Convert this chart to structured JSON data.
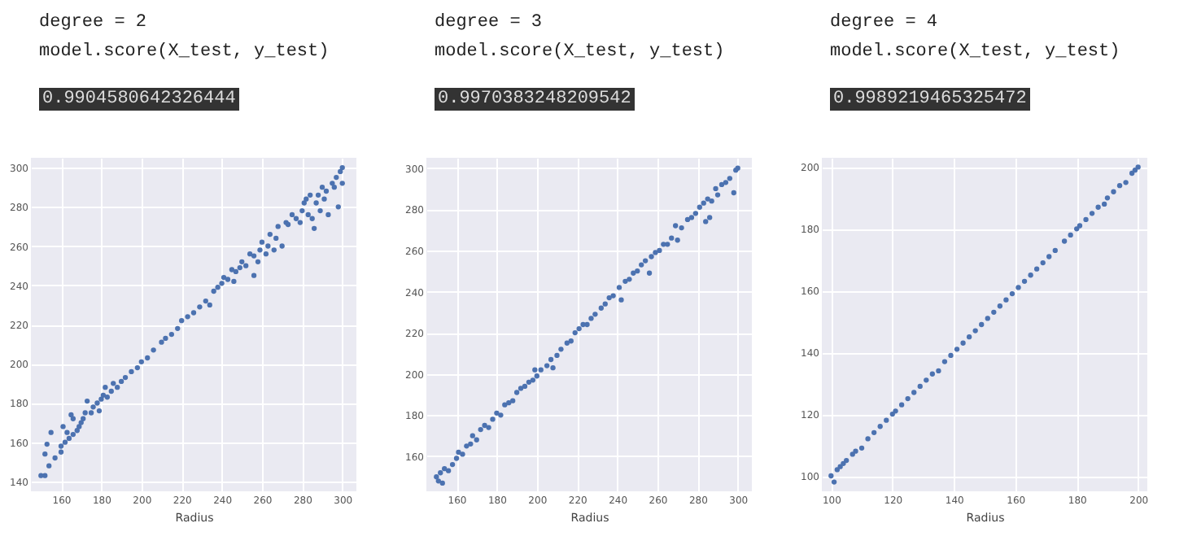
{
  "chart_data": [
    {
      "type": "scatter",
      "title": "degree = 2",
      "subtitle": "model.score(X_test, y_test)",
      "annotations": [
        "0.9904580642326444"
      ],
      "xlabel": "Radius",
      "grid": true,
      "marker": "circle",
      "xlim": [
        145,
        307
      ],
      "ylim": [
        135,
        305
      ],
      "xticks": [
        160,
        180,
        200,
        220,
        240,
        260,
        280,
        300
      ],
      "yticks": [
        140,
        160,
        180,
        200,
        220,
        240,
        260,
        280,
        300
      ],
      "series": [
        {
          "color": "#4c72b0",
          "x": [
            150,
            152,
            152,
            153,
            154,
            155,
            157,
            160,
            161,
            160,
            162,
            163,
            164,
            165,
            166,
            166,
            168,
            169,
            170,
            171,
            172,
            173,
            175,
            176,
            178,
            179,
            180,
            181,
            182,
            183,
            185,
            186,
            188,
            190,
            192,
            195,
            198,
            200,
            203,
            206,
            210,
            212,
            215,
            218,
            220,
            223,
            226,
            229,
            232,
            234,
            236,
            238,
            240,
            241,
            243,
            245,
            246,
            247,
            249,
            250,
            252,
            254,
            256,
            256,
            258,
            259,
            260,
            262,
            263,
            264,
            266,
            267,
            268,
            270,
            272,
            273,
            275,
            277,
            279,
            280,
            281,
            282,
            283,
            284,
            285,
            286,
            287,
            288,
            289,
            290,
            291,
            292,
            293,
            295,
            296,
            297,
            298,
            299,
            300,
            300
          ],
          "values": [
            143,
            143,
            154,
            159,
            148,
            165,
            152,
            155,
            168,
            158,
            160,
            165,
            162,
            174,
            172,
            164,
            166,
            168,
            170,
            172,
            175,
            181,
            175,
            178,
            180,
            176,
            182,
            184,
            188,
            183,
            186,
            190,
            188,
            191,
            193,
            196,
            198,
            201,
            203,
            207,
            211,
            213,
            215,
            218,
            222,
            224,
            226,
            229,
            232,
            230,
            237,
            239,
            241,
            244,
            243,
            248,
            242,
            247,
            249,
            252,
            250,
            256,
            245,
            255,
            252,
            258,
            262,
            256,
            260,
            266,
            258,
            264,
            270,
            260,
            272,
            271,
            276,
            274,
            272,
            278,
            282,
            284,
            276,
            286,
            274,
            269,
            282,
            286,
            278,
            290,
            284,
            288,
            276,
            292,
            290,
            295,
            280,
            298,
            300,
            292
          ]
        }
      ]
    },
    {
      "type": "scatter",
      "title": "degree = 3",
      "subtitle": "model.score(X_test, y_test)",
      "annotations": [
        "0.9970383248209542"
      ],
      "xlabel": "Radius",
      "grid": true,
      "marker": "circle",
      "xlim": [
        145,
        307
      ],
      "ylim": [
        143,
        305
      ],
      "xticks": [
        160,
        180,
        200,
        220,
        240,
        260,
        280,
        300
      ],
      "yticks": [
        160,
        180,
        200,
        220,
        240,
        260,
        280,
        300
      ],
      "series": [
        {
          "color": "#4c72b0",
          "x": [
            150,
            151,
            152,
            153,
            154,
            156,
            158,
            160,
            161,
            163,
            165,
            167,
            168,
            170,
            172,
            174,
            176,
            178,
            180,
            182,
            184,
            186,
            188,
            190,
            192,
            194,
            196,
            198,
            199,
            200,
            202,
            205,
            207,
            208,
            210,
            212,
            215,
            217,
            219,
            221,
            223,
            225,
            227,
            229,
            232,
            234,
            236,
            238,
            241,
            242,
            244,
            246,
            248,
            250,
            252,
            254,
            256,
            257,
            259,
            261,
            263,
            265,
            267,
            269,
            270,
            272,
            275,
            277,
            279,
            281,
            283,
            284,
            285,
            286,
            287,
            289,
            290,
            292,
            294,
            296,
            298,
            299,
            300
          ],
          "values": [
            150,
            148,
            152,
            147,
            154,
            153,
            156,
            159,
            162,
            161,
            165,
            166,
            170,
            168,
            173,
            175,
            174,
            178,
            181,
            180,
            185,
            186,
            187,
            191,
            193,
            194,
            196,
            197,
            202,
            199,
            202,
            204,
            207,
            203,
            209,
            212,
            215,
            216,
            220,
            222,
            224,
            224,
            227,
            229,
            232,
            234,
            237,
            238,
            242,
            236,
            245,
            246,
            249,
            250,
            253,
            255,
            249,
            257,
            259,
            260,
            263,
            263,
            266,
            272,
            265,
            271,
            275,
            276,
            278,
            281,
            283,
            274,
            285,
            276,
            284,
            290,
            287,
            292,
            293,
            295,
            288,
            299,
            300
          ]
        }
      ]
    },
    {
      "type": "scatter",
      "title": "degree = 4",
      "subtitle": "model.score(X_test, y_test)",
      "annotations": [
        "0.9989219465325472"
      ],
      "xlabel": "Radius",
      "grid": true,
      "marker": "circle",
      "xlim": [
        97,
        203
      ],
      "ylim": [
        95,
        203
      ],
      "xticks": [
        100,
        120,
        140,
        160,
        180,
        200
      ],
      "yticks": [
        100,
        120,
        140,
        160,
        180,
        200
      ],
      "series": [
        {
          "color": "#4c72b0",
          "x": [
            100,
            101,
            102,
            103,
            104,
            105,
            107,
            108,
            110,
            112,
            114,
            116,
            118,
            120,
            121,
            123,
            125,
            127,
            129,
            131,
            133,
            135,
            137,
            139,
            141,
            143,
            145,
            147,
            149,
            151,
            153,
            155,
            157,
            159,
            161,
            163,
            165,
            167,
            169,
            171,
            173,
            176,
            178,
            180,
            181,
            183,
            185,
            187,
            189,
            190,
            192,
            194,
            196,
            198,
            199,
            200
          ],
          "values": [
            100,
            98,
            102,
            103,
            104,
            105,
            107,
            108,
            109,
            112,
            114,
            116,
            118,
            120,
            121,
            123,
            125,
            127,
            129,
            131,
            133,
            134,
            137,
            139,
            141,
            143,
            145,
            147,
            149,
            151,
            153,
            155,
            157,
            159,
            161,
            163,
            165,
            167,
            169,
            171,
            173,
            176,
            178,
            180,
            181,
            183,
            185,
            187,
            188,
            190,
            192,
            194,
            195,
            198,
            199,
            200
          ]
        }
      ]
    }
  ]
}
